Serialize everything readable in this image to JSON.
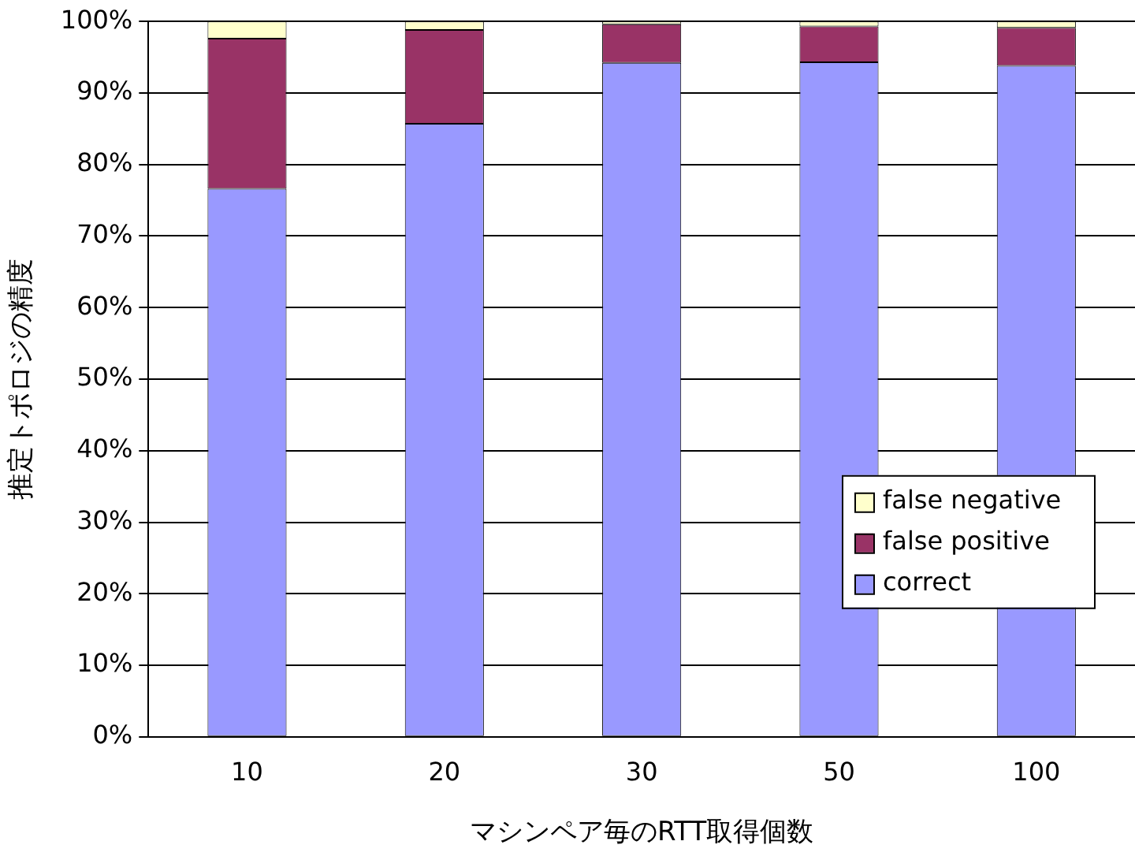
{
  "chart_data": {
    "type": "bar",
    "stacked": true,
    "xlabel": "マシンペア毎のRTT取得個数",
    "ylabel": "推定トポロジの精度",
    "categories": [
      "10",
      "20",
      "30",
      "50",
      "100"
    ],
    "series": [
      {
        "name": "correct",
        "color": "#9999ff",
        "values": [
          76.6,
          85.7,
          94.2,
          94.3,
          93.8
        ]
      },
      {
        "name": "false positive",
        "color": "#993366",
        "values": [
          21.0,
          13.1,
          5.4,
          5.0,
          5.3
        ]
      },
      {
        "name": "false negative",
        "color": "#ffffcc",
        "values": [
          2.4,
          1.2,
          0.4,
          0.7,
          0.9
        ]
      }
    ],
    "ylim": [
      0,
      100
    ],
    "yticks": [
      {
        "value": 0,
        "label": "0%"
      },
      {
        "value": 10,
        "label": "10%"
      },
      {
        "value": 20,
        "label": "20%"
      },
      {
        "value": 30,
        "label": "30%"
      },
      {
        "value": 40,
        "label": "40%"
      },
      {
        "value": 50,
        "label": "50%"
      },
      {
        "value": 60,
        "label": "60%"
      },
      {
        "value": 70,
        "label": "70%"
      },
      {
        "value": 80,
        "label": "80%"
      },
      {
        "value": 90,
        "label": "90%"
      },
      {
        "value": 100,
        "label": "100%"
      }
    ],
    "grid": "y",
    "legend": "bottom right"
  }
}
